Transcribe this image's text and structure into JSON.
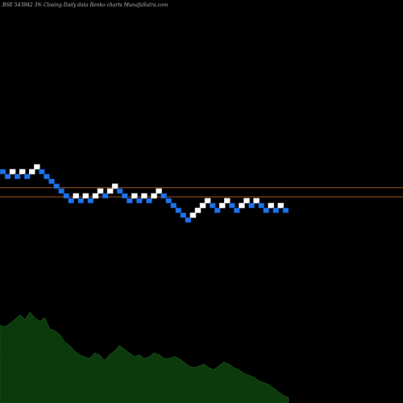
{
  "header": {
    "text": "BSE 543942  3% Closing Daily data  Renko  charts MunafaSutra.com"
  },
  "colors": {
    "background": "#000000",
    "up_brick": "#ffffff",
    "down_brick": "#1e74e8",
    "down_brick_border": "#0a3a8a",
    "reference_line": "#b5651d",
    "volume_fill": "#0c3a0c"
  },
  "chart_data": [
    {
      "type": "renko",
      "brick_size_percent": 3,
      "reference_lines": [
        {
          "y_level": 7.2
        },
        {
          "y_level": 5.3
        }
      ],
      "bricks": [
        {
          "col": 0,
          "level": 10,
          "dir": "down"
        },
        {
          "col": 1,
          "level": 9,
          "dir": "down"
        },
        {
          "col": 2,
          "level": 10,
          "dir": "up"
        },
        {
          "col": 3,
          "level": 9,
          "dir": "down"
        },
        {
          "col": 4,
          "level": 10,
          "dir": "up"
        },
        {
          "col": 5,
          "level": 9,
          "dir": "down"
        },
        {
          "col": 6,
          "level": 10,
          "dir": "up"
        },
        {
          "col": 7,
          "level": 11,
          "dir": "up"
        },
        {
          "col": 8,
          "level": 10,
          "dir": "down"
        },
        {
          "col": 9,
          "level": 9,
          "dir": "down"
        },
        {
          "col": 10,
          "level": 8,
          "dir": "down"
        },
        {
          "col": 11,
          "level": 7,
          "dir": "down"
        },
        {
          "col": 12,
          "level": 6,
          "dir": "down"
        },
        {
          "col": 13,
          "level": 5,
          "dir": "down"
        },
        {
          "col": 14,
          "level": 4,
          "dir": "down"
        },
        {
          "col": 15,
          "level": 5,
          "dir": "up"
        },
        {
          "col": 16,
          "level": 4,
          "dir": "down"
        },
        {
          "col": 17,
          "level": 5,
          "dir": "up"
        },
        {
          "col": 18,
          "level": 4,
          "dir": "down"
        },
        {
          "col": 19,
          "level": 5,
          "dir": "up"
        },
        {
          "col": 20,
          "level": 6,
          "dir": "up"
        },
        {
          "col": 21,
          "level": 5,
          "dir": "down"
        },
        {
          "col": 22,
          "level": 6,
          "dir": "up"
        },
        {
          "col": 23,
          "level": 7,
          "dir": "up"
        },
        {
          "col": 24,
          "level": 6,
          "dir": "down"
        },
        {
          "col": 25,
          "level": 5,
          "dir": "down"
        },
        {
          "col": 26,
          "level": 4,
          "dir": "down"
        },
        {
          "col": 27,
          "level": 5,
          "dir": "up"
        },
        {
          "col": 28,
          "level": 4,
          "dir": "down"
        },
        {
          "col": 29,
          "level": 5,
          "dir": "up"
        },
        {
          "col": 30,
          "level": 4,
          "dir": "down"
        },
        {
          "col": 31,
          "level": 5,
          "dir": "up"
        },
        {
          "col": 32,
          "level": 6,
          "dir": "up"
        },
        {
          "col": 33,
          "level": 5,
          "dir": "down"
        },
        {
          "col": 34,
          "level": 4,
          "dir": "down"
        },
        {
          "col": 35,
          "level": 3,
          "dir": "down"
        },
        {
          "col": 36,
          "level": 2,
          "dir": "down"
        },
        {
          "col": 37,
          "level": 1,
          "dir": "down"
        },
        {
          "col": 38,
          "level": 0,
          "dir": "down"
        },
        {
          "col": 39,
          "level": 1,
          "dir": "up"
        },
        {
          "col": 40,
          "level": 2,
          "dir": "up"
        },
        {
          "col": 41,
          "level": 3,
          "dir": "up"
        },
        {
          "col": 42,
          "level": 4,
          "dir": "up"
        },
        {
          "col": 43,
          "level": 3,
          "dir": "down"
        },
        {
          "col": 44,
          "level": 2,
          "dir": "down"
        },
        {
          "col": 45,
          "level": 3,
          "dir": "up"
        },
        {
          "col": 46,
          "level": 4,
          "dir": "up"
        },
        {
          "col": 47,
          "level": 3,
          "dir": "down"
        },
        {
          "col": 48,
          "level": 2,
          "dir": "down"
        },
        {
          "col": 49,
          "level": 3,
          "dir": "up"
        },
        {
          "col": 50,
          "level": 4,
          "dir": "up"
        },
        {
          "col": 51,
          "level": 3,
          "dir": "down"
        },
        {
          "col": 52,
          "level": 4,
          "dir": "up"
        },
        {
          "col": 53,
          "level": 3,
          "dir": "down"
        },
        {
          "col": 54,
          "level": 2,
          "dir": "down"
        },
        {
          "col": 55,
          "level": 3,
          "dir": "up"
        },
        {
          "col": 56,
          "level": 2,
          "dir": "down"
        },
        {
          "col": 57,
          "level": 3,
          "dir": "up"
        },
        {
          "col": 58,
          "level": 2,
          "dir": "down"
        }
      ]
    },
    {
      "type": "area",
      "series": [
        {
          "values": [
            84,
            82,
            86,
            90,
            95,
            90,
            98,
            92,
            88,
            92,
            80,
            78,
            74,
            66,
            62,
            56,
            52,
            50,
            48,
            54,
            52,
            46,
            52,
            56,
            62,
            58,
            54,
            50,
            52,
            48,
            50,
            54,
            52,
            48,
            48,
            50,
            48,
            44,
            40,
            38,
            40,
            42,
            38,
            36,
            40,
            44,
            42,
            38,
            36,
            32,
            30,
            28,
            24,
            22,
            20,
            16,
            12,
            8,
            6
          ]
        }
      ],
      "ylim": [
        0,
        100
      ]
    }
  ]
}
